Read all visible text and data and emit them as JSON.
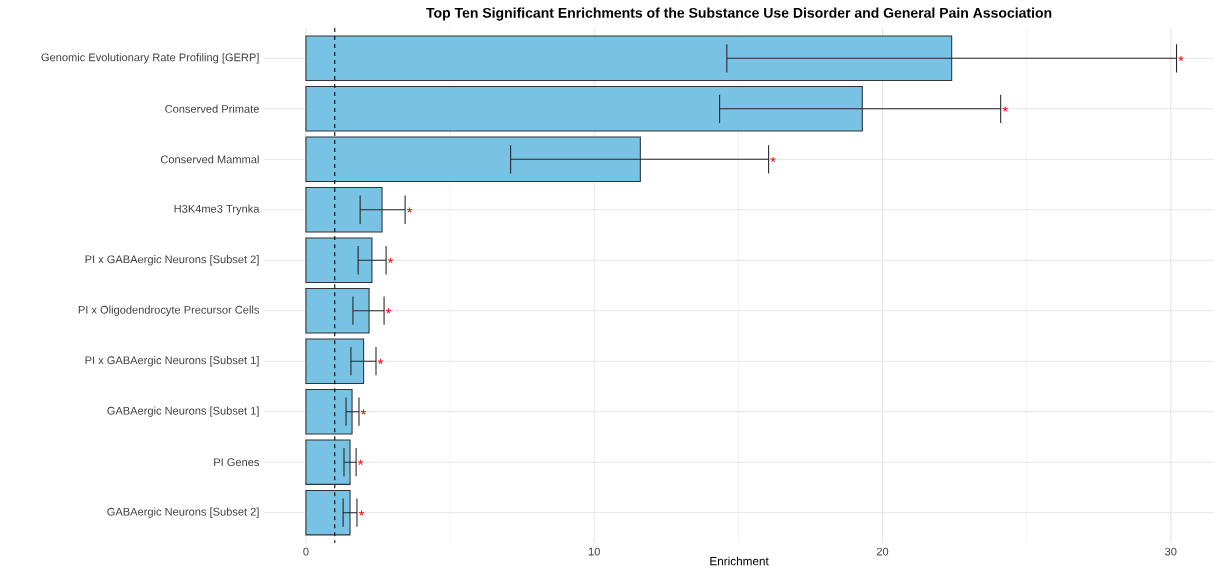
{
  "chart_data": {
    "type": "bar",
    "orientation": "horizontal",
    "title": "Top Ten Significant Enrichments of the Substance Use Disorder and General Pain Association",
    "xlabel": "Enrichment",
    "categories": [
      "Genomic Evolutionary Rate Profiling [GERP]",
      "Conserved Primate",
      "Conserved Mammal",
      "H3K4me3 Trynka",
      "PI x GABAergic Neurons [Subset 2]",
      "PI x Oligodendrocyte Precursor Cells",
      "PI x GABAergic Neurons [Subset 1]",
      "GABAergic Neurons [Subset 1]",
      "PI Genes",
      "GABAergic Neurons [Subset 2]"
    ],
    "values": [
      22.4,
      19.3,
      11.6,
      2.64,
      2.29,
      2.19,
      2.0,
      1.6,
      1.53,
      1.53
    ],
    "errors": [
      [
        14.6,
        30.2
      ],
      [
        14.35,
        24.1
      ],
      [
        7.1,
        16.05
      ],
      [
        1.88,
        3.44
      ],
      [
        1.81,
        2.78
      ],
      [
        1.63,
        2.71
      ],
      [
        1.56,
        2.43
      ],
      [
        1.39,
        1.84
      ],
      [
        1.32,
        1.74
      ],
      [
        1.29,
        1.77
      ]
    ],
    "annotations": [
      {
        "text": "*",
        "x": 30.2,
        "y": "Genomic Evolutionary Rate Profiling [GERP]"
      },
      {
        "text": "*",
        "x": 24.1,
        "y": "Conserved Primate"
      },
      {
        "text": "*",
        "x": 16.05,
        "y": "Conserved Mammal"
      },
      {
        "text": "*",
        "x": 3.44,
        "y": "H3K4me3 Trynka"
      },
      {
        "text": "*",
        "x": 2.78,
        "y": "PI x GABAergic Neurons [Subset 2]"
      },
      {
        "text": "*",
        "x": 2.71,
        "y": "PI x Oligodendrocyte Precursor Cells"
      },
      {
        "text": "*",
        "x": 2.43,
        "y": "PI x GABAergic Neurons [Subset 1]"
      },
      {
        "text": "*",
        "x": 1.84,
        "y": "GABAergic Neurons [Subset 1]"
      },
      {
        "text": "*",
        "x": 1.74,
        "y": "PI Genes"
      },
      {
        "text": "*",
        "x": 1.77,
        "y": "GABAergic Neurons [Subset 2]"
      }
    ],
    "color": "#78c2e4",
    "xlim": [
      -1.45,
      31.5
    ],
    "xticks": [
      0,
      10,
      20,
      30
    ],
    "ref_lines": [
      {
        "axis": "x",
        "value": 1,
        "line_style": "dashed",
        "color": "#000000"
      }
    ],
    "grid": true
  }
}
